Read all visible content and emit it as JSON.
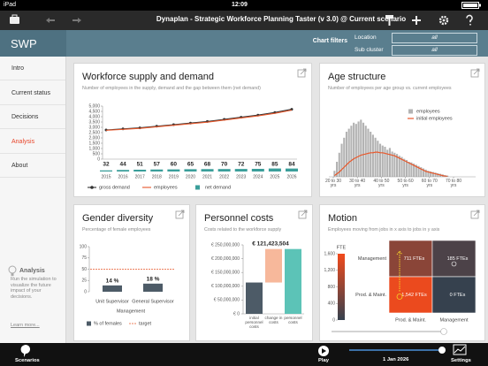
{
  "status_bar": {
    "device": "iPad",
    "time": "12:09"
  },
  "header": {
    "title": "Dynaplan - Strategic Workforce Planning Taster (v 3.0) @ Current scenario"
  },
  "sidebar": {
    "logo": "SWP",
    "nav": [
      "Intro",
      "Current status",
      "Decisions",
      "Analysis",
      "About"
    ],
    "active": 3,
    "help": {
      "title": "Analysis",
      "text": "Run the simulation to visualize the future impact of your decisions.",
      "link": "Learn more..."
    }
  },
  "filters": {
    "title": "Chart filters",
    "items": [
      {
        "label": "Location",
        "value": "all"
      },
      {
        "label": "Sub cluster",
        "value": "all"
      }
    ]
  },
  "chart_data": [
    {
      "type": "line",
      "title": "Workforce supply and demand",
      "subtitle": "Number of employees in the supply, demand and the gap between them (net demand)",
      "x": [
        2015,
        2016,
        2017,
        2018,
        2019,
        2020,
        2021,
        2022,
        2023,
        2024,
        2025,
        2026
      ],
      "xlim": [
        2015,
        2026
      ],
      "ylim": [
        0,
        5000
      ],
      "yticks": [
        0,
        500,
        {
          "value": 1000,
          "label": "1,000"
        },
        {
          "value": 1500,
          "label": "1,500"
        },
        {
          "value": 2000,
          "label": "2,000"
        },
        {
          "value": 2500,
          "label": "2,500"
        },
        {
          "value": 3000,
          "label": "3,000"
        },
        {
          "value": 3500,
          "label": "3,500"
        },
        {
          "value": 4000,
          "label": "4,000"
        },
        {
          "value": 4500,
          "label": "4,500"
        },
        {
          "value": 5000,
          "label": "5,000"
        }
      ],
      "series": [
        {
          "name": "gross demand",
          "color": "#333333",
          "marker": true,
          "values": [
            2750,
            2850,
            2950,
            3100,
            3250,
            3400,
            3550,
            3750,
            3950,
            4150,
            4400,
            4700
          ]
        },
        {
          "name": "employees",
          "color": "#e8572a",
          "values": [
            2718,
            2806,
            2899,
            3043,
            3190,
            3335,
            3482,
            3680,
            3878,
            4075,
            4315,
            4616
          ]
        },
        {
          "name": "net demand",
          "type": "bar",
          "color": "#3a9e9a",
          "values": [
            32,
            44,
            51,
            57,
            60,
            65,
            68,
            70,
            72,
            75,
            85,
            84
          ]
        }
      ]
    },
    {
      "type": "histogram",
      "title": "Age structure",
      "subtitle": "Number of employees per age group vs. current employees",
      "bins": [
        20,
        21,
        22,
        23,
        24,
        25,
        26,
        27,
        28,
        29,
        30,
        31,
        32,
        33,
        34,
        35,
        36,
        37,
        38,
        39,
        40,
        41,
        42,
        43,
        44,
        45,
        46,
        47,
        48,
        49,
        50,
        51,
        52,
        53,
        54,
        55,
        56,
        57,
        58,
        59,
        60,
        61,
        62,
        63,
        64,
        65,
        66,
        67,
        68
      ],
      "xlim": [
        20,
        70
      ],
      "ylim": [
        0,
        100
      ],
      "xticks": [
        {
          "value": 20,
          "label": "20 to 30 yrs"
        },
        {
          "value": 30,
          "label": "30 to 40 yrs"
        },
        {
          "value": 40,
          "label": "40 to 50 yrs"
        },
        {
          "value": 50,
          "label": "50 to 60 yrs"
        },
        {
          "value": 60,
          "label": "60 to 70 yrs"
        },
        {
          "value": 70,
          "label": "70 to 80 yrs"
        }
      ],
      "series": [
        {
          "name": "employees",
          "color": "#b3b3b3",
          "values": [
            10,
            25,
            40,
            55,
            65,
            75,
            80,
            85,
            90,
            88,
            92,
            95,
            90,
            85,
            80,
            75,
            70,
            65,
            60,
            55,
            52,
            50,
            45,
            48,
            42,
            40,
            38,
            35,
            33,
            30,
            28,
            25,
            24,
            22,
            20,
            18,
            16,
            14,
            12,
            10,
            9,
            8,
            7,
            6,
            5,
            4,
            3,
            2
          ]
        },
        {
          "name": "initial employees",
          "color": "#e8572a",
          "values": [
            2,
            5,
            8,
            12,
            16,
            20,
            24,
            27,
            30,
            32,
            34,
            36,
            37,
            38,
            39,
            40,
            40,
            41,
            41,
            40,
            40,
            39,
            38,
            37,
            36,
            35,
            33,
            31,
            29,
            27,
            25,
            23,
            21,
            19,
            17,
            15,
            13,
            11,
            9,
            8,
            7,
            6,
            5,
            4,
            3,
            2,
            1,
            1
          ]
        }
      ]
    },
    {
      "type": "bar",
      "title": "Gender diversity",
      "subtitle": "Percentage of female employees",
      "categories": [
        "Unit Supervisor",
        "General Supervisor"
      ],
      "xlabel": "Management",
      "ylim": [
        0,
        100
      ],
      "yticks": [
        0,
        25,
        50,
        75,
        100
      ],
      "series": [
        {
          "name": "% of females",
          "color": "#4d5b67",
          "values": [
            14,
            18
          ],
          "value_labels": [
            "14 %",
            "18 %"
          ]
        }
      ],
      "target": {
        "name": "target",
        "value": 50,
        "color": "#e8572a"
      }
    },
    {
      "type": "waterfall",
      "title": "Personnel costs",
      "subtitle": "Costs related to the workforce supply",
      "categories": [
        "initial personnel costs",
        "change in costs",
        "personnel costs"
      ],
      "measures": [
        "absolute",
        "relative",
        "total"
      ],
      "values": [
        113600000,
        121423504,
        235023504
      ],
      "value_labels": [
        null,
        "€ 121,423,504",
        null
      ],
      "colors": [
        "#4d5b67",
        "#f7b89b",
        "#5cc3b7"
      ],
      "ylim": [
        0,
        250000000
      ],
      "yticks": [
        {
          "value": 0,
          "label": "€ 0"
        },
        {
          "value": 50000000,
          "label": "€ 50,000,000"
        },
        {
          "value": 100000000,
          "label": "€ 100,000,000"
        },
        {
          "value": 150000000,
          "label": "€ 150,000,000"
        },
        {
          "value": 200000000,
          "label": "€ 200,000,000"
        },
        {
          "value": 250000000,
          "label": "€ 250,000,000"
        }
      ]
    },
    {
      "type": "heatmap",
      "title": "Motion",
      "subtitle": "Employees moving from jobs in x axis to jobs in y axis",
      "rows": [
        "Management",
        "Prod. & Maint."
      ],
      "columns": [
        "Prod. & Maint.",
        "Management"
      ],
      "z": [
        [
          711,
          185
        ],
        [
          1542,
          0
        ]
      ],
      "value_labels": [
        [
          "711 FTEs",
          "185 FTEs"
        ],
        [
          "1,542 FTEs",
          "0 FTEs"
        ]
      ],
      "zlabel": "FTE",
      "zlim": [
        0,
        1600
      ],
      "zticks": [
        0,
        400,
        800,
        {
          "value": 1200,
          "label": "1,200"
        },
        {
          "value": 1600,
          "label": "1,600"
        }
      ],
      "colorscale": [
        "#36414e",
        "#f24a1c"
      ]
    }
  ],
  "toolbar": {
    "scenarios": "Scenarios",
    "play": "Play",
    "date": "1 Jan 2026",
    "settings": "Settings"
  }
}
